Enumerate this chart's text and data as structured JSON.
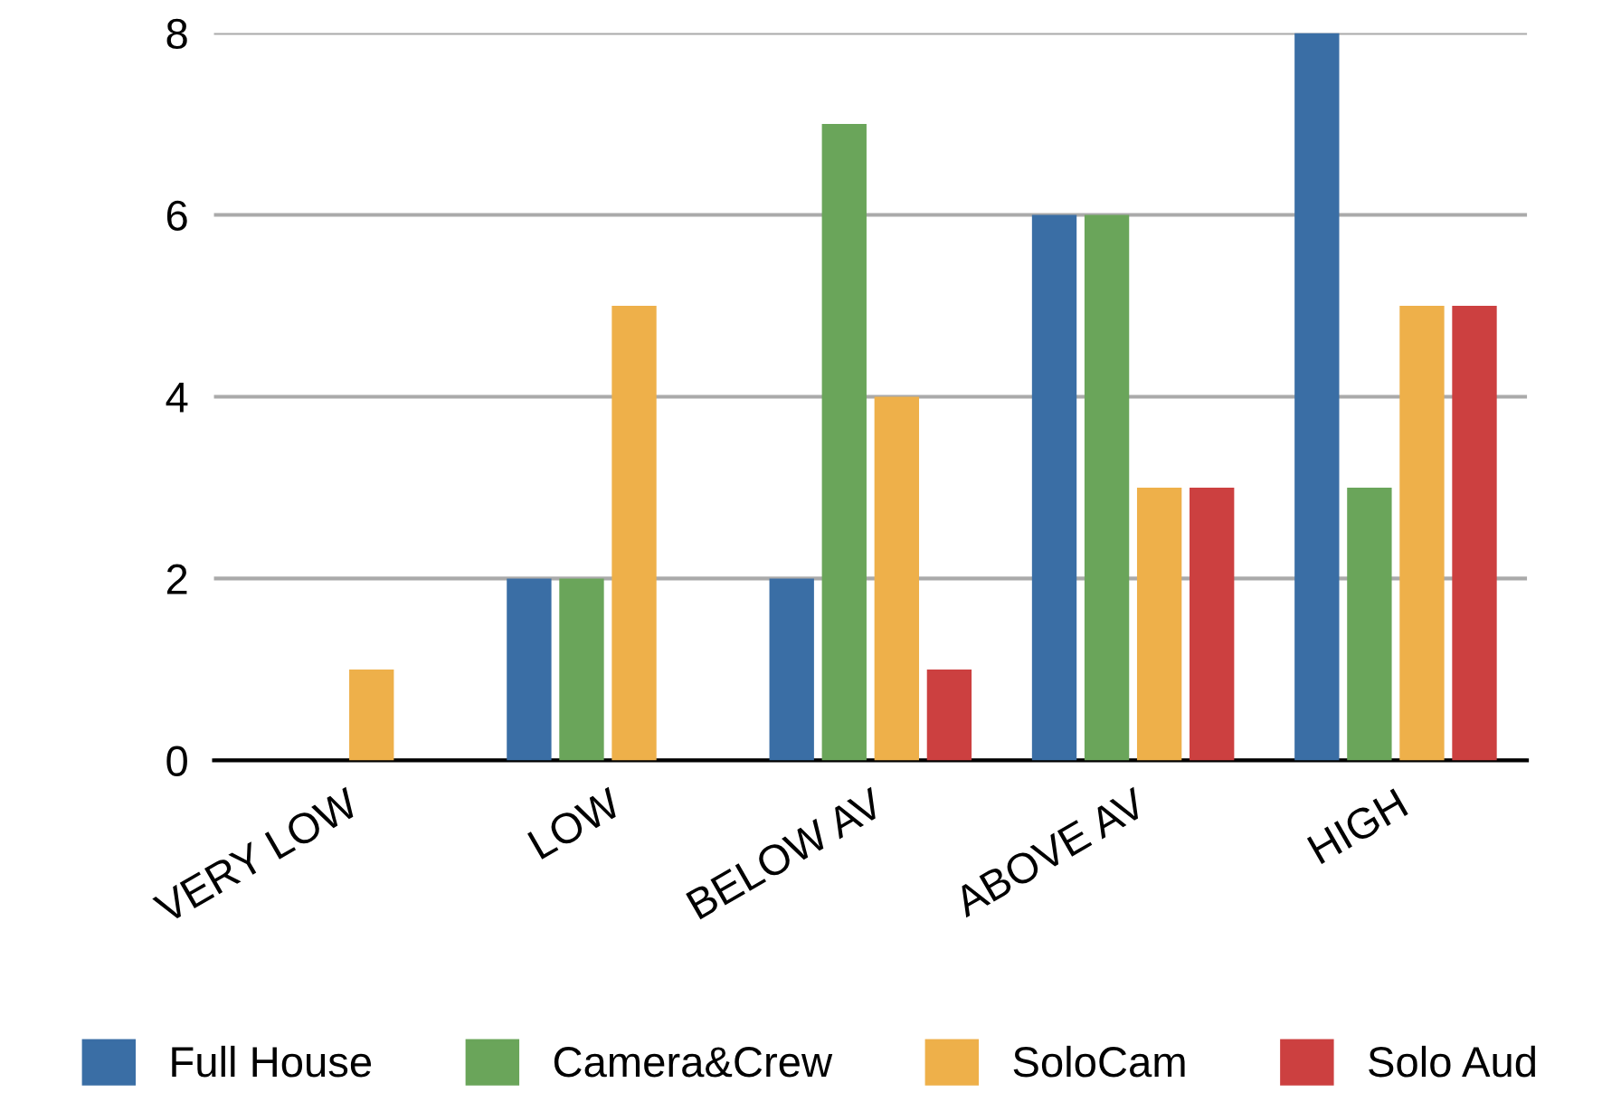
{
  "chart_data": {
    "type": "bar",
    "categories": [
      "VERY LOW",
      "LOW",
      "BELOW AV",
      "ABOVE AV",
      "HIGH"
    ],
    "series": [
      {
        "name": "Full House",
        "color": "#3a6ea5",
        "values": [
          0,
          2,
          2,
          6,
          8
        ]
      },
      {
        "name": "Camera&Crew",
        "color": "#6aa55a",
        "values": [
          0,
          2,
          7,
          6,
          3
        ]
      },
      {
        "name": "SoloCam",
        "color": "#eeb04a",
        "values": [
          1,
          5,
          4,
          3,
          5
        ]
      },
      {
        "name": "Solo Aud",
        "color": "#cc4040",
        "values": [
          0,
          0,
          1,
          3,
          5
        ]
      }
    ],
    "ylim": [
      0,
      8
    ],
    "yticks": [
      0,
      2,
      4,
      6,
      8
    ],
    "grid": "y",
    "legend": "bottom"
  }
}
